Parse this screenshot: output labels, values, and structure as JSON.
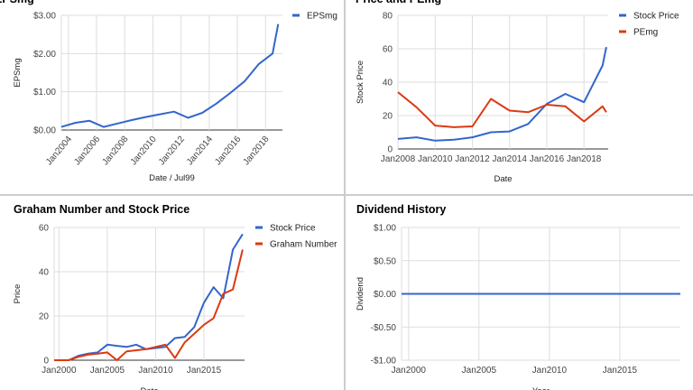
{
  "colors": {
    "blue": "#3366cc",
    "red": "#dc3912",
    "grid": "#dddddd",
    "baseline": "#333333"
  },
  "chart_data": [
    {
      "type": "line",
      "title": "EPSmg",
      "xlabel": "Date / Jul99",
      "ylabel": "EPSmg",
      "x_ticks": [
        "Jan2004",
        "Jan2006",
        "Jan2008",
        "Jan2010",
        "Jan2012",
        "Jan2014",
        "Jan2016",
        "Jan2018"
      ],
      "y_ticks": [
        "$0.00",
        "$1.00",
        "$2.00",
        "$3.00"
      ],
      "xlim": [
        2003.5,
        2019.2
      ],
      "ylim": [
        0,
        3
      ],
      "legend_position": "top-right",
      "series": [
        {
          "name": "EPSmg",
          "color": "#3366cc",
          "x": [
            2003.5,
            2004.5,
            2005.5,
            2006.5,
            2007.5,
            2008.5,
            2009.5,
            2010.5,
            2011.5,
            2012.5,
            2013.5,
            2014.5,
            2015.5,
            2016.5,
            2017.5,
            2018.5,
            2018.9
          ],
          "y": [
            0.08,
            0.19,
            0.24,
            0.08,
            0.17,
            0.26,
            0.34,
            0.41,
            0.48,
            0.32,
            0.45,
            0.69,
            0.97,
            1.27,
            1.72,
            2.0,
            2.77
          ]
        }
      ]
    },
    {
      "type": "line",
      "title": "Price and PEmg",
      "xlabel": "Date",
      "ylabel": "Stock Price",
      "x_ticks": [
        "Jan2008",
        "Jan2010",
        "Jan2012",
        "Jan2014",
        "Jan2016",
        "Jan2018"
      ],
      "y_ticks": [
        "0",
        "20",
        "40",
        "60",
        "80"
      ],
      "xlim": [
        2008,
        2019.3
      ],
      "ylim": [
        0,
        80
      ],
      "legend_position": "top-right",
      "series": [
        {
          "name": "Stock Price",
          "color": "#3366cc",
          "x": [
            2008,
            2009,
            2010,
            2011,
            2012,
            2013,
            2014,
            2015,
            2016,
            2017,
            2018,
            2019,
            2019.2
          ],
          "y": [
            6,
            7,
            5,
            5.5,
            7,
            10,
            10.5,
            15,
            27,
            33,
            28,
            50,
            61
          ]
        },
        {
          "name": "PEmg",
          "color": "#dc3912",
          "x": [
            2008,
            2009,
            2010,
            2011,
            2012,
            2013,
            2014,
            2015,
            2016,
            2017,
            2018,
            2019,
            2019.2
          ],
          "y": [
            34,
            25,
            14,
            13,
            13.5,
            30,
            23,
            22,
            26.5,
            25.5,
            16.5,
            25.5,
            22
          ]
        }
      ]
    },
    {
      "type": "line",
      "title": "Graham Number and Stock Price",
      "xlabel": "Date",
      "ylabel": "Price",
      "x_ticks": [
        "Jan2000",
        "Jan2005",
        "Jan2010",
        "Jan2015"
      ],
      "y_ticks": [
        "0",
        "20",
        "40",
        "60"
      ],
      "xlim": [
        1999.5,
        2019.2
      ],
      "ylim": [
        0,
        60
      ],
      "legend_position": "top-right",
      "series": [
        {
          "name": "Stock Price",
          "color": "#3366cc",
          "x": [
            1999.5,
            2000,
            2001,
            2002,
            2003,
            2004,
            2005,
            2006,
            2007,
            2008,
            2009,
            2010,
            2011,
            2012,
            2013,
            2014,
            2015,
            2016,
            2017,
            2018,
            2019
          ],
          "y": [
            0,
            0,
            0,
            2,
            3,
            3.5,
            7,
            6.5,
            6,
            7,
            5,
            5.5,
            6,
            10,
            10.5,
            15,
            26,
            33,
            28,
            50,
            57
          ]
        },
        {
          "name": "Graham Number",
          "color": "#dc3912",
          "x": [
            1999.5,
            2000,
            2001,
            2002,
            2003,
            2004,
            2005,
            2006,
            2007,
            2008,
            2009,
            2010,
            2011,
            2012,
            2013,
            2014,
            2015,
            2016,
            2017,
            2018,
            2019
          ],
          "y": [
            0,
            0,
            0,
            1.5,
            2.5,
            3,
            3.5,
            0,
            4,
            4.5,
            5,
            6,
            7,
            1,
            8,
            12,
            16,
            19,
            30,
            32,
            50
          ]
        }
      ]
    },
    {
      "type": "line",
      "title": "Dividend History",
      "xlabel": "Year",
      "ylabel": "Dividend",
      "x_ticks": [
        "Jan2000",
        "Jan2005",
        "Jan2010",
        "Jan2015"
      ],
      "y_ticks": [
        "-$1.00",
        "-$0.50",
        "$0.00",
        "$0.50",
        "$1.00"
      ],
      "xlim": [
        1999.5,
        2019.3
      ],
      "ylim": [
        -1,
        1
      ],
      "series": [
        {
          "color": "#3366cc",
          "x": [
            1999.5,
            2019.3
          ],
          "y": [
            0,
            0
          ]
        }
      ]
    }
  ]
}
